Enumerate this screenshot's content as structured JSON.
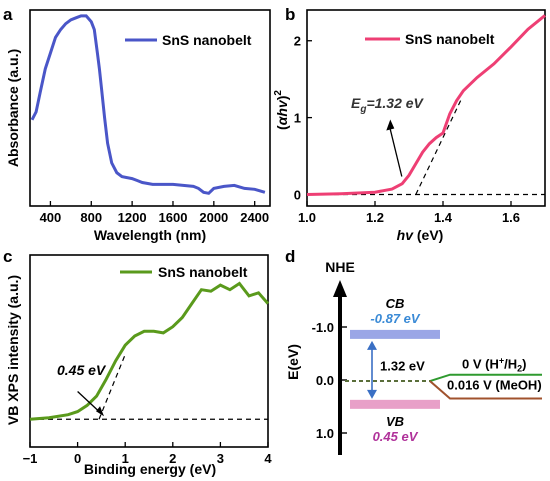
{
  "panels": {
    "a": {
      "letter": "a"
    },
    "b": {
      "letter": "b"
    },
    "c": {
      "letter": "c"
    },
    "d": {
      "letter": "d"
    }
  },
  "chart_data": [
    {
      "panel": "a",
      "type": "line",
      "xlabel": "Wavelength (nm)",
      "ylabel": "Absorbance (a.u.)",
      "xlim": [
        200,
        2550
      ],
      "ylim": [
        0,
        1
      ],
      "xticks": [
        400,
        800,
        1200,
        1600,
        2000,
        2400
      ],
      "yticks": [],
      "series": [
        {
          "name": "SnS nanobelt",
          "color": "#4a56c8",
          "x": [
            220,
            260,
            300,
            350,
            400,
            450,
            500,
            550,
            600,
            650,
            700,
            750,
            800,
            830,
            860,
            880,
            900,
            930,
            960,
            1000,
            1050,
            1100,
            1150,
            1200,
            1250,
            1300,
            1400,
            1500,
            1600,
            1700,
            1800,
            1850,
            1900,
            1950,
            2000,
            2100,
            2200,
            2300,
            2400,
            2500
          ],
          "y": [
            0.44,
            0.48,
            0.58,
            0.7,
            0.78,
            0.86,
            0.9,
            0.93,
            0.95,
            0.96,
            0.97,
            0.97,
            0.94,
            0.9,
            0.78,
            0.7,
            0.6,
            0.45,
            0.32,
            0.22,
            0.17,
            0.15,
            0.145,
            0.14,
            0.13,
            0.12,
            0.11,
            0.11,
            0.11,
            0.105,
            0.1,
            0.09,
            0.07,
            0.065,
            0.09,
            0.1,
            0.105,
            0.09,
            0.085,
            0.07
          ]
        }
      ]
    },
    {
      "panel": "b",
      "type": "line",
      "xlabel": "hv (eV)",
      "ylabel": "(αhv)²",
      "xlim": [
        1.0,
        1.7
      ],
      "ylim": [
        -0.15,
        2.4
      ],
      "xticks": [
        1.0,
        1.2,
        1.4,
        1.6
      ],
      "xticklabels": [
        "1.0",
        "1.2",
        "1.4",
        "1.6"
      ],
      "yticks": [
        0,
        1,
        2
      ],
      "series": [
        {
          "name": "SnS nanobelt",
          "color": "#ee3f74",
          "x": [
            1.0,
            1.1,
            1.2,
            1.25,
            1.28,
            1.3,
            1.32,
            1.34,
            1.36,
            1.38,
            1.4,
            1.42,
            1.44,
            1.46,
            1.5,
            1.55,
            1.6,
            1.65,
            1.7
          ],
          "y": [
            0.0,
            0.01,
            0.03,
            0.07,
            0.14,
            0.25,
            0.4,
            0.55,
            0.66,
            0.74,
            0.8,
            1.05,
            1.22,
            1.35,
            1.52,
            1.7,
            1.92,
            2.15,
            2.33
          ]
        }
      ],
      "annotation": "1.32 eV",
      "eg_value": 1.32
    },
    {
      "panel": "c",
      "type": "line",
      "xlabel": "Binding energy (eV)",
      "ylabel": "VB XPS intensity (a.u.)",
      "xlim": [
        -1,
        4
      ],
      "ylim": [
        -0.05,
        1.0
      ],
      "xticks": [
        -1,
        0,
        1,
        2,
        3,
        4
      ],
      "yticks": [],
      "series": [
        {
          "name": "SnS nanobelt",
          "color": "#5a9a1c",
          "x": [
            -1.0,
            -0.6,
            -0.2,
            0.0,
            0.2,
            0.4,
            0.6,
            0.8,
            1.0,
            1.2,
            1.4,
            1.6,
            1.8,
            2.0,
            2.2,
            2.4,
            2.6,
            2.8,
            3.0,
            3.2,
            3.4,
            3.6,
            3.8,
            4.0
          ],
          "y": [
            0.0,
            0.01,
            0.03,
            0.05,
            0.09,
            0.15,
            0.26,
            0.38,
            0.48,
            0.54,
            0.57,
            0.57,
            0.56,
            0.6,
            0.66,
            0.75,
            0.84,
            0.83,
            0.87,
            0.84,
            0.88,
            0.8,
            0.82,
            0.75
          ]
        }
      ],
      "annotation": "0.45 eV",
      "onset_value": 0.45
    },
    {
      "panel": "d",
      "type": "diagram",
      "axis_title": "NHE",
      "ylabel": "E(eV)",
      "ylim": [
        1.4,
        -1.7
      ],
      "yticks": [
        -1.0,
        0.0,
        1.0
      ],
      "yticklabels": [
        "-1.0",
        "0.0",
        "1.0"
      ],
      "cb_label": "CB",
      "cb_value": "-0.87 eV",
      "cb_energy": -0.87,
      "vb_label": "VB",
      "vb_value": "0.45 eV",
      "vb_energy": 0.45,
      "gap_label": "1.32 eV",
      "h_level_label": "0 V (H⁺/H₂)",
      "h_level_energy": -0.1,
      "meoh_level_label": "0.016 V (MeOH)",
      "meoh_level_energy": 0.35
    }
  ],
  "texts": {
    "a_legend": "SnS nanobelt",
    "b_legend": "SnS nanobelt",
    "c_legend": "SnS nanobelt",
    "b_eg_prefix": "E",
    "b_eg_sub": "g",
    "b_eg_value": "=1.32 eV",
    "b_ylabel_pre": "(",
    "b_ylabel_alpha": "α",
    "b_ylabel_hv": "hv",
    "b_ylabel_post": ")",
    "b_ylabel_sup": "2",
    "b_xlabel_hv": "hv",
    "b_xlabel_unit": " (eV)",
    "c_ann": "0.45 eV",
    "d_cb": "CB",
    "d_cb_val": "-0.87 eV",
    "d_vb": "VB",
    "d_vb_val": "0.45 eV",
    "d_gap": "1.32 eV",
    "d_h_pre": "0 V (H",
    "d_h_sup": "+",
    "d_h_mid": "/H",
    "d_h_sub": "2",
    "d_h_post": ")",
    "d_meoh": "0.016 V (MeOH)",
    "d_nhe": "NHE",
    "d_ylabel": "E(eV)"
  },
  "colors": {
    "a_line": "#4a56c8",
    "b_line": "#ee3f74",
    "c_line": "#5a9a1c",
    "cb_band": "#9aa6e6",
    "vb_band": "#e8a0c8",
    "h_level": "#2f9a2f",
    "meoh_level": "#a0522d",
    "cb_text": "#3a8ad6",
    "vb_text": "#b0329a"
  }
}
